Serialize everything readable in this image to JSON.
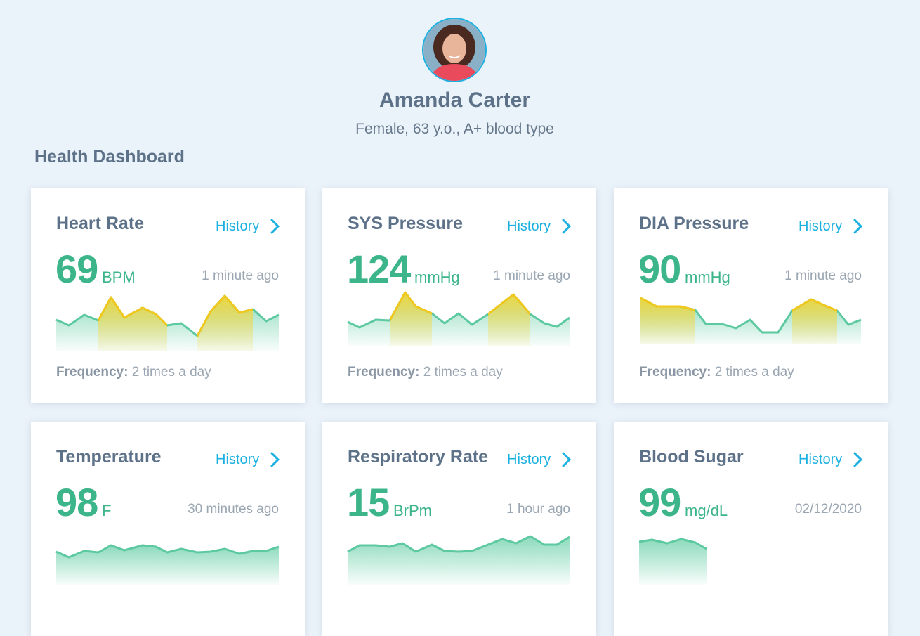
{
  "profile": {
    "name": "Amanda Carter",
    "details": "Female, 63 y.o., A+ blood type"
  },
  "section_title": "Health Dashboard",
  "cards": [
    {
      "title": "Heart Rate",
      "history": "History",
      "value": 69,
      "unit": "BPM",
      "updated": "1 minute ago",
      "frequency_label": "Frequency:",
      "frequency": "2 times a day"
    },
    {
      "title": "SYS Pressure",
      "history": "History",
      "value": 124,
      "unit": "mmHg",
      "updated": "1 minute ago",
      "frequency_label": "Frequency:",
      "frequency": "2 times a day"
    },
    {
      "title": "DIA Pressure",
      "history": "History",
      "value": 90,
      "unit": "mmHg",
      "updated": "1 minute ago",
      "frequency_label": "Frequency:",
      "frequency": "2 times a day"
    },
    {
      "title": "Temperature",
      "history": "History",
      "value": 98,
      "unit": "F",
      "updated": "30 minutes ago"
    },
    {
      "title": "Respiratory Rate",
      "history": "History",
      "value": 15,
      "unit": "BrPm",
      "updated": "1 hour ago"
    },
    {
      "title": "Blood Sugar",
      "history": "History",
      "value": 99,
      "unit": "mg/dL",
      "updated": "02/12/2020"
    }
  ]
}
